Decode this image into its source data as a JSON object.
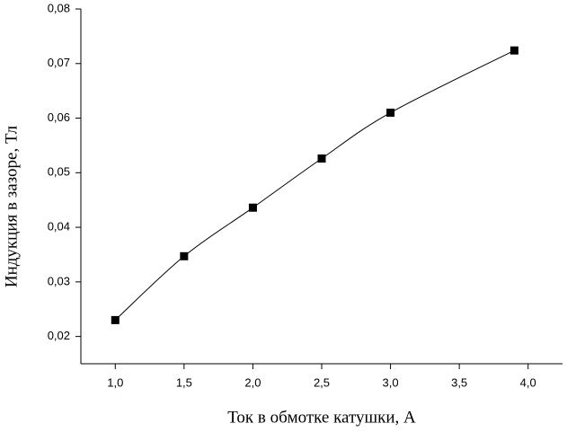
{
  "chart_data": {
    "type": "line",
    "x_label": "Ток в обмотке катушки, А",
    "y_label": "Индукция в зазоре, Тл",
    "x": [
      1.0,
      1.5,
      2.0,
      2.5,
      3.0,
      3.9
    ],
    "series": [
      {
        "color": "#000000",
        "values": [
          0.023,
          0.0347,
          0.0436,
          0.0526,
          0.061,
          0.0724
        ]
      }
    ],
    "xlim": [
      0.75,
      4.25
    ],
    "ylim": [
      0.015,
      0.08
    ],
    "xticks": [
      {
        "value": 1.0,
        "label": "1,0"
      },
      {
        "value": 1.5,
        "label": "1,5"
      },
      {
        "value": 2.0,
        "label": "2,0"
      },
      {
        "value": 2.5,
        "label": "2,5"
      },
      {
        "value": 3.0,
        "label": "3,0"
      },
      {
        "value": 3.5,
        "label": "3,5"
      },
      {
        "value": 4.0,
        "label": "4,0"
      }
    ],
    "yticks": [
      {
        "value": 0.02,
        "label": "0,02"
      },
      {
        "value": 0.03,
        "label": "0,03"
      },
      {
        "value": 0.04,
        "label": "0,04"
      },
      {
        "value": 0.05,
        "label": "0,05"
      },
      {
        "value": 0.06,
        "label": "0,06"
      },
      {
        "value": 0.07,
        "label": "0,07"
      },
      {
        "value": 0.08,
        "label": "0,08"
      }
    ],
    "grid": false
  }
}
